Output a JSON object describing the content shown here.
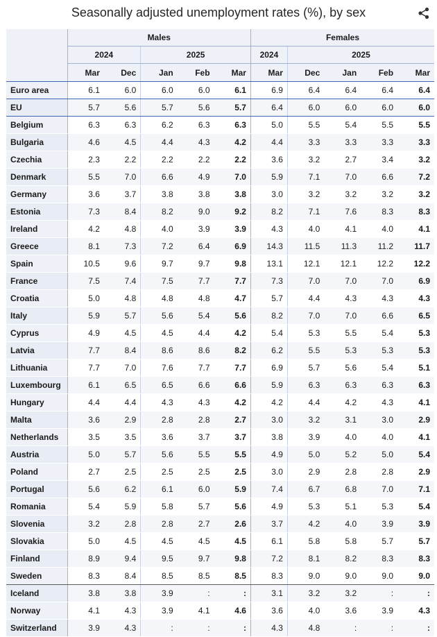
{
  "title": "Seasonally adjusted unemployment rates (%), by sex",
  "share_icon": "share-icon",
  "chart_data": {
    "type": "table",
    "title": "Seasonally adjusted unemployment rates (%), by sex",
    "groups": [
      "Males",
      "Females"
    ],
    "years": [
      "2024",
      "2025"
    ],
    "months": [
      "Mar",
      "Dec",
      "Jan",
      "Feb",
      "Mar"
    ],
    "rows": [
      {
        "label": "Euro area",
        "males": [
          "6.1",
          "6.0",
          "6.0",
          "6.0",
          "6.1"
        ],
        "females": [
          "6.9",
          "6.4",
          "6.4",
          "6.4",
          "6.4"
        ]
      },
      {
        "label": "EU",
        "males": [
          "5.7",
          "5.6",
          "5.7",
          "5.6",
          "5.7"
        ],
        "females": [
          "6.4",
          "6.0",
          "6.0",
          "6.0",
          "6.0"
        ]
      },
      {
        "label": "Belgium",
        "males": [
          "6.3",
          "6.3",
          "6.2",
          "6.3",
          "6.3"
        ],
        "females": [
          "5.0",
          "5.5",
          "5.4",
          "5.5",
          "5.5"
        ]
      },
      {
        "label": "Bulgaria",
        "males": [
          "4.6",
          "4.5",
          "4.4",
          "4.3",
          "4.2"
        ],
        "females": [
          "4.4",
          "3.3",
          "3.3",
          "3.3",
          "3.3"
        ]
      },
      {
        "label": "Czechia",
        "males": [
          "2.3",
          "2.2",
          "2.2",
          "2.2",
          "2.2"
        ],
        "females": [
          "3.6",
          "3.2",
          "2.7",
          "3.4",
          "3.2"
        ]
      },
      {
        "label": "Denmark",
        "males": [
          "5.5",
          "7.0",
          "6.6",
          "4.9",
          "7.0"
        ],
        "females": [
          "5.9",
          "7.1",
          "7.0",
          "6.6",
          "7.2"
        ]
      },
      {
        "label": "Germany",
        "males": [
          "3.6",
          "3.7",
          "3.8",
          "3.8",
          "3.8"
        ],
        "females": [
          "3.0",
          "3.2",
          "3.2",
          "3.2",
          "3.2"
        ]
      },
      {
        "label": "Estonia",
        "males": [
          "7.3",
          "8.4",
          "8.2",
          "9.0",
          "9.2"
        ],
        "females": [
          "8.2",
          "7.1",
          "7.6",
          "8.3",
          "8.3"
        ]
      },
      {
        "label": "Ireland",
        "males": [
          "4.2",
          "4.8",
          "4.0",
          "3.9",
          "3.9"
        ],
        "females": [
          "4.3",
          "4.0",
          "4.1",
          "4.0",
          "4.1"
        ]
      },
      {
        "label": "Greece",
        "males": [
          "8.1",
          "7.3",
          "7.2",
          "6.4",
          "6.9"
        ],
        "females": [
          "14.3",
          "11.5",
          "11.3",
          "11.2",
          "11.7"
        ]
      },
      {
        "label": "Spain",
        "males": [
          "10.5",
          "9.6",
          "9.7",
          "9.7",
          "9.8"
        ],
        "females": [
          "13.1",
          "12.1",
          "12.1",
          "12.2",
          "12.2"
        ]
      },
      {
        "label": "France",
        "males": [
          "7.5",
          "7.4",
          "7.5",
          "7.7",
          "7.7"
        ],
        "females": [
          "7.3",
          "7.0",
          "7.0",
          "7.0",
          "6.9"
        ]
      },
      {
        "label": "Croatia",
        "males": [
          "5.0",
          "4.8",
          "4.8",
          "4.8",
          "4.7"
        ],
        "females": [
          "5.7",
          "4.4",
          "4.3",
          "4.3",
          "4.3"
        ]
      },
      {
        "label": "Italy",
        "males": [
          "5.9",
          "5.7",
          "5.6",
          "5.4",
          "5.6"
        ],
        "females": [
          "8.2",
          "7.0",
          "7.0",
          "6.6",
          "6.5"
        ]
      },
      {
        "label": "Cyprus",
        "males": [
          "4.9",
          "4.5",
          "4.5",
          "4.4",
          "4.2"
        ],
        "females": [
          "5.4",
          "5.3",
          "5.5",
          "5.4",
          "5.3"
        ]
      },
      {
        "label": "Latvia",
        "males": [
          "7.7",
          "8.4",
          "8.6",
          "8.6",
          "8.2"
        ],
        "females": [
          "6.2",
          "5.5",
          "5.3",
          "5.3",
          "5.3"
        ]
      },
      {
        "label": "Lithuania",
        "males": [
          "7.7",
          "7.0",
          "7.6",
          "7.7",
          "7.7"
        ],
        "females": [
          "6.9",
          "5.7",
          "5.6",
          "5.4",
          "5.1"
        ]
      },
      {
        "label": "Luxembourg",
        "males": [
          "6.1",
          "6.5",
          "6.5",
          "6.6",
          "6.6"
        ],
        "females": [
          "5.9",
          "6.3",
          "6.3",
          "6.3",
          "6.3"
        ]
      },
      {
        "label": "Hungary",
        "males": [
          "4.4",
          "4.4",
          "4.3",
          "4.3",
          "4.2"
        ],
        "females": [
          "4.2",
          "4.4",
          "4.2",
          "4.3",
          "4.1"
        ]
      },
      {
        "label": "Malta",
        "males": [
          "3.6",
          "2.9",
          "2.8",
          "2.8",
          "2.7"
        ],
        "females": [
          "3.0",
          "3.2",
          "3.1",
          "3.0",
          "2.9"
        ]
      },
      {
        "label": "Netherlands",
        "males": [
          "3.5",
          "3.5",
          "3.6",
          "3.7",
          "3.7"
        ],
        "females": [
          "3.8",
          "3.9",
          "4.0",
          "4.0",
          "4.1"
        ]
      },
      {
        "label": "Austria",
        "males": [
          "5.0",
          "5.7",
          "5.6",
          "5.5",
          "5.5"
        ],
        "females": [
          "4.9",
          "5.0",
          "5.2",
          "5.0",
          "5.4"
        ]
      },
      {
        "label": "Poland",
        "males": [
          "2.7",
          "2.5",
          "2.5",
          "2.5",
          "2.5"
        ],
        "females": [
          "3.0",
          "2.9",
          "2.8",
          "2.8",
          "2.9"
        ]
      },
      {
        "label": "Portugal",
        "males": [
          "5.6",
          "6.2",
          "6.1",
          "6.0",
          "5.9"
        ],
        "females": [
          "7.4",
          "6.7",
          "6.8",
          "7.0",
          "7.1"
        ]
      },
      {
        "label": "Romania",
        "males": [
          "5.4",
          "5.9",
          "5.8",
          "5.7",
          "5.6"
        ],
        "females": [
          "4.9",
          "5.3",
          "5.1",
          "5.3",
          "5.4"
        ]
      },
      {
        "label": "Slovenia",
        "males": [
          "3.2",
          "2.8",
          "2.8",
          "2.7",
          "2.6"
        ],
        "females": [
          "3.7",
          "4.2",
          "4.0",
          "3.9",
          "3.9"
        ]
      },
      {
        "label": "Slovakia",
        "males": [
          "5.0",
          "4.5",
          "4.5",
          "4.5",
          "4.5"
        ],
        "females": [
          "6.1",
          "5.8",
          "5.8",
          "5.7",
          "5.7"
        ]
      },
      {
        "label": "Finland",
        "males": [
          "8.9",
          "9.4",
          "9.5",
          "9.7",
          "9.8"
        ],
        "females": [
          "7.2",
          "8.1",
          "8.2",
          "8.3",
          "8.3"
        ]
      },
      {
        "label": "Sweden",
        "males": [
          "8.3",
          "8.4",
          "8.5",
          "8.5",
          "8.5"
        ],
        "females": [
          "8.3",
          "9.0",
          "9.0",
          "9.0",
          "9.0"
        ]
      },
      {
        "label": "Iceland",
        "males": [
          "3.8",
          "3.8",
          "3.9",
          ":",
          ":"
        ],
        "females": [
          "3.1",
          "3.2",
          "3.2",
          ":",
          ":"
        ]
      },
      {
        "label": "Norway",
        "males": [
          "4.1",
          "4.3",
          "3.9",
          "4.1",
          "4.6"
        ],
        "females": [
          "3.6",
          "4.0",
          "3.6",
          "3.9",
          "4.3"
        ]
      },
      {
        "label": "Switzerland",
        "males": [
          "3.9",
          "4.3",
          ":",
          ":",
          ":"
        ],
        "females": [
          "4.3",
          "4.8",
          ":",
          ":",
          ":"
        ]
      }
    ]
  }
}
